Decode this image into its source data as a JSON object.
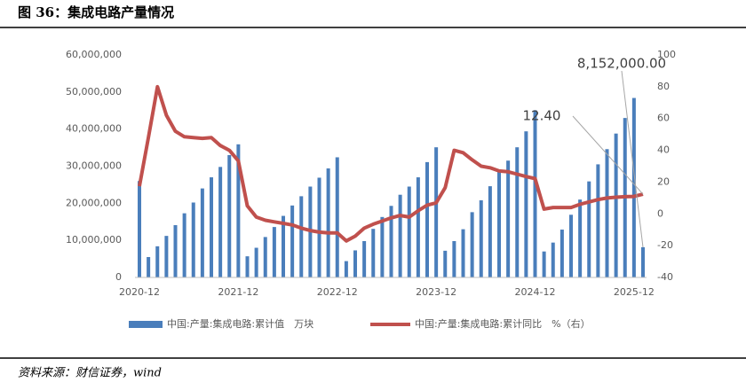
{
  "header": {
    "title": "图 36：集成电路产量情况"
  },
  "chart_data": {
    "type": "bar",
    "categories": [
      "2020-12",
      null,
      null,
      null,
      null,
      null,
      null,
      null,
      null,
      null,
      null,
      "2021-12",
      null,
      null,
      null,
      null,
      null,
      null,
      null,
      null,
      null,
      null,
      "2022-12",
      null,
      null,
      null,
      null,
      null,
      null,
      null,
      null,
      null,
      null,
      "2023-12",
      null,
      null,
      null,
      null,
      null,
      null,
      null,
      null,
      null,
      null,
      "2024-12",
      null,
      null,
      null,
      null,
      null,
      null,
      null,
      null,
      null,
      null,
      "2025-12",
      null
    ],
    "series": [
      {
        "name": "中国:产量:集成电路:累计值　万块",
        "type": "bar",
        "color": "#4a7ebb",
        "values": [
          26000000,
          5500000,
          8400000,
          11200000,
          14100000,
          17300000,
          20200000,
          24000000,
          27000000,
          29800000,
          33000000,
          35900000,
          5700000,
          8000000,
          10900000,
          13600000,
          16600000,
          19400000,
          21900000,
          24500000,
          26900000,
          29400000,
          32400000,
          4400000,
          7300000,
          9800000,
          13100000,
          16300000,
          19300000,
          22300000,
          24500000,
          27000000,
          31100000,
          35100000,
          7200000,
          9800000,
          13000000,
          17600000,
          20800000,
          24600000,
          28400000,
          31500000,
          35100000,
          39400000,
          45100000,
          7000000,
          9400000,
          12900000,
          16900000,
          21000000,
          25900000,
          30500000,
          34600000,
          38800000,
          43000000,
          48400000,
          8152000
        ],
        "value_labels": [
          null,
          null,
          null,
          null,
          null,
          null,
          null,
          null,
          null,
          null,
          null,
          null,
          null,
          null,
          null,
          null,
          null,
          null,
          null,
          null,
          null,
          null,
          null,
          null,
          null,
          null,
          null,
          null,
          null,
          null,
          null,
          null,
          null,
          null,
          null,
          null,
          null,
          null,
          null,
          null,
          null,
          null,
          null,
          null,
          null,
          null,
          null,
          null,
          null,
          null,
          null,
          null,
          null,
          null,
          null,
          null,
          "8,152,000.00"
        ]
      },
      {
        "name": "中国:产量:集成电路:累计同比　%（右）",
        "type": "line",
        "axis": "y2",
        "color": "#c0504d",
        "values": [
          17.4,
          48,
          80,
          62,
          52,
          48.5,
          48,
          47.5,
          48,
          43,
          40,
          33.3,
          5,
          -2,
          -4,
          -5,
          -6,
          -7,
          -9,
          -10.5,
          -11.5,
          -12,
          -12,
          -17,
          -14,
          -9,
          -6.5,
          -4.5,
          -2.5,
          -1,
          -2,
          2,
          5.5,
          6.9,
          16.5,
          40,
          38.5,
          34,
          30,
          29,
          27,
          26.5,
          25,
          23.5,
          22.2,
          3,
          4,
          4,
          4,
          6,
          7.5,
          9,
          10,
          10.5,
          10.8,
          11,
          12.4
        ],
        "value_labels": [
          null,
          null,
          null,
          null,
          null,
          null,
          null,
          null,
          null,
          null,
          null,
          null,
          null,
          null,
          null,
          null,
          null,
          null,
          null,
          null,
          null,
          null,
          null,
          null,
          null,
          null,
          null,
          null,
          null,
          null,
          null,
          null,
          null,
          null,
          null,
          null,
          null,
          null,
          null,
          null,
          null,
          null,
          null,
          null,
          null,
          null,
          null,
          null,
          null,
          null,
          null,
          null,
          null,
          null,
          null,
          null,
          "12.40"
        ]
      }
    ],
    "ylim": [
      0,
      60000000
    ],
    "yticks": [
      0,
      {
        "value": 10000000,
        "label": "10,000,000"
      },
      {
        "value": 20000000,
        "label": "20,000,000"
      },
      {
        "value": 30000000,
        "label": "30,000,000"
      },
      {
        "value": 40000000,
        "label": "40,000,000"
      },
      {
        "value": 50000000,
        "label": "50,000,000"
      },
      {
        "value": 60000000,
        "label": "60,000,000"
      }
    ],
    "y2lim": [
      -40,
      100
    ],
    "y2ticks": [
      -40,
      -20,
      0,
      20,
      40,
      60,
      80,
      100
    ],
    "grid": false
  },
  "source": "资料来源：财信证券，wind"
}
